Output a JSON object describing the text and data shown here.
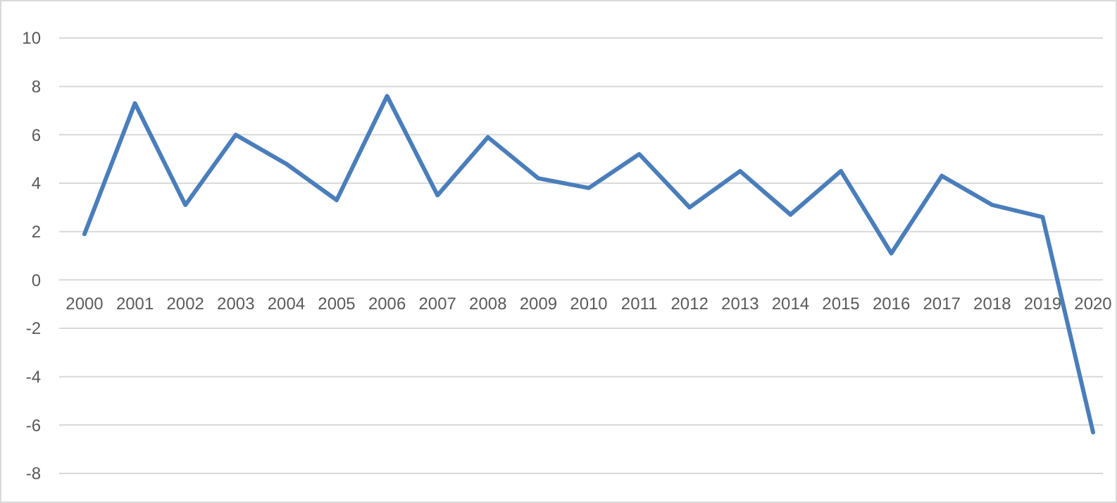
{
  "chart_data": {
    "type": "line",
    "categories": [
      "2000",
      "2001",
      "2002",
      "2003",
      "2004",
      "2005",
      "2006",
      "2007",
      "2008",
      "2009",
      "2010",
      "2011",
      "2012",
      "2013",
      "2014",
      "2015",
      "2016",
      "2017",
      "2018",
      "2019",
      "2020"
    ],
    "series": [
      {
        "color": "#4a7ebb",
        "values": [
          1.9,
          7.3,
          3.1,
          6.0,
          4.8,
          3.3,
          7.6,
          3.5,
          5.9,
          4.2,
          3.8,
          5.2,
          3.0,
          4.5,
          2.7,
          4.5,
          1.1,
          4.3,
          3.1,
          2.6,
          -6.3
        ]
      }
    ],
    "ylim": [
      -8,
      10
    ],
    "yticks": [
      -8,
      -6,
      -4,
      -2,
      0,
      2,
      4,
      6,
      8,
      10
    ],
    "grid": "y"
  }
}
